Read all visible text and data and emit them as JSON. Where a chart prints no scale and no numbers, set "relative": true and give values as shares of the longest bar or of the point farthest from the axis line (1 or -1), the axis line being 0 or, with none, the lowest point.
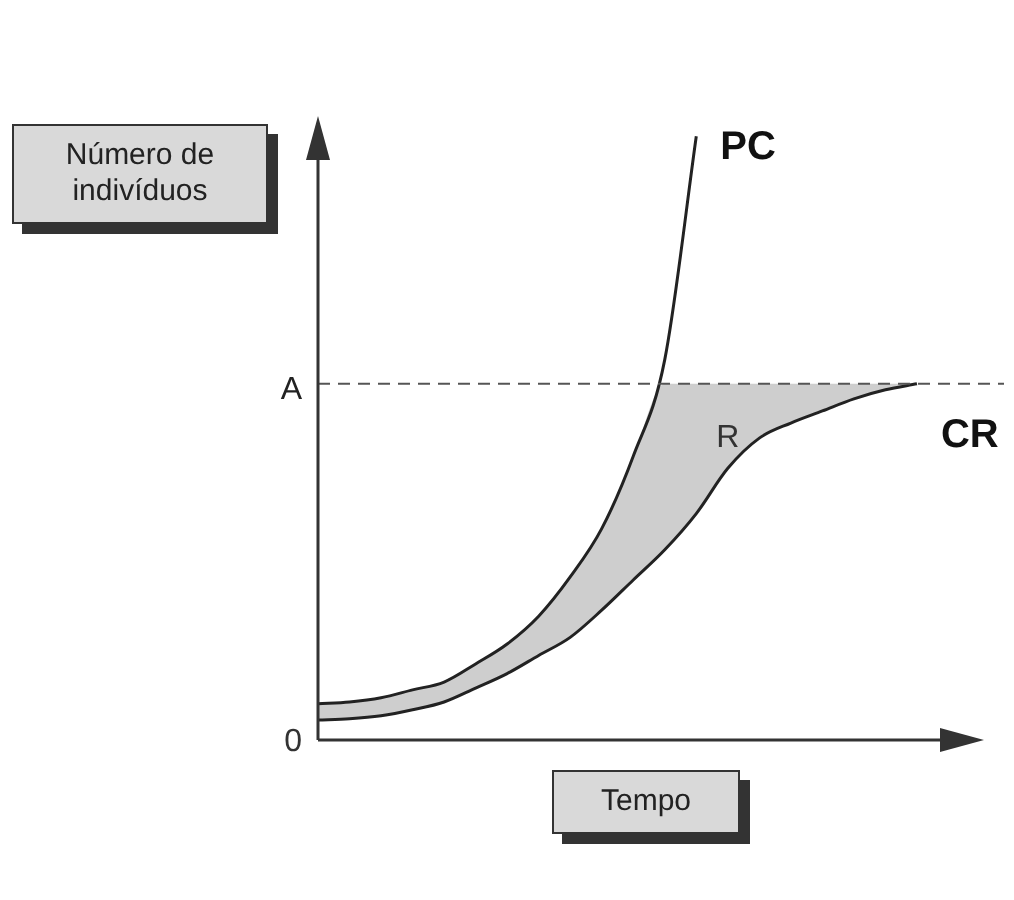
{
  "chart_data": {
    "type": "line",
    "relative": true,
    "ylabel": "Número de indivíduos",
    "xlabel": "Tempo",
    "legend": false,
    "grid": false,
    "line_style": "solid",
    "categories": [
      null,
      null,
      null,
      null,
      null,
      null,
      null,
      null,
      null,
      null,
      null,
      null,
      null,
      null,
      null,
      null,
      null,
      null,
      null,
      null,
      null,
      null
    ],
    "series": [
      {
        "name": "PC",
        "color": "#222222",
        "values": [
          0.06,
          0.063,
          0.07,
          0.083,
          0.096,
          0.126,
          0.159,
          0.205,
          0.27,
          0.35,
          0.47,
          0.63,
          1,
          null,
          null,
          null,
          null,
          null,
          null,
          null,
          null,
          null
        ]
      },
      {
        "name": "CR",
        "color": "#222222",
        "values": [
          0.033,
          0.035,
          0.04,
          0.05,
          0.063,
          0.086,
          0.11,
          0.14,
          0.17,
          0.215,
          0.265,
          0.315,
          0.375,
          0.45,
          0.5,
          0.525,
          0.545,
          0.565,
          0.58,
          0.59,
          null,
          null
        ],
        "lower": [
          0.033,
          0.035,
          0.04,
          0.05,
          0.063,
          0.086,
          0.11,
          0.14,
          0.17,
          0.215,
          0.265,
          0.315,
          0.375,
          0.45,
          0.5,
          0.525,
          0.545,
          0.565,
          0.58,
          0.59,
          null,
          null
        ],
        "upper": [
          0.06,
          0.063,
          0.07,
          0.083,
          0.096,
          0.126,
          0.159,
          0.205,
          0.27,
          0.35,
          0.47,
          0.59,
          0.59,
          0.59,
          0.59,
          0.59,
          0.59,
          0.59,
          0.59,
          0.59,
          null,
          null
        ]
      }
    ],
    "ref_lines": [
      {
        "axis": "y",
        "value": 0.59,
        "label": "A",
        "color": "#555555",
        "line_style": "dashed"
      }
    ],
    "annotations": [
      "R",
      "0"
    ]
  }
}
